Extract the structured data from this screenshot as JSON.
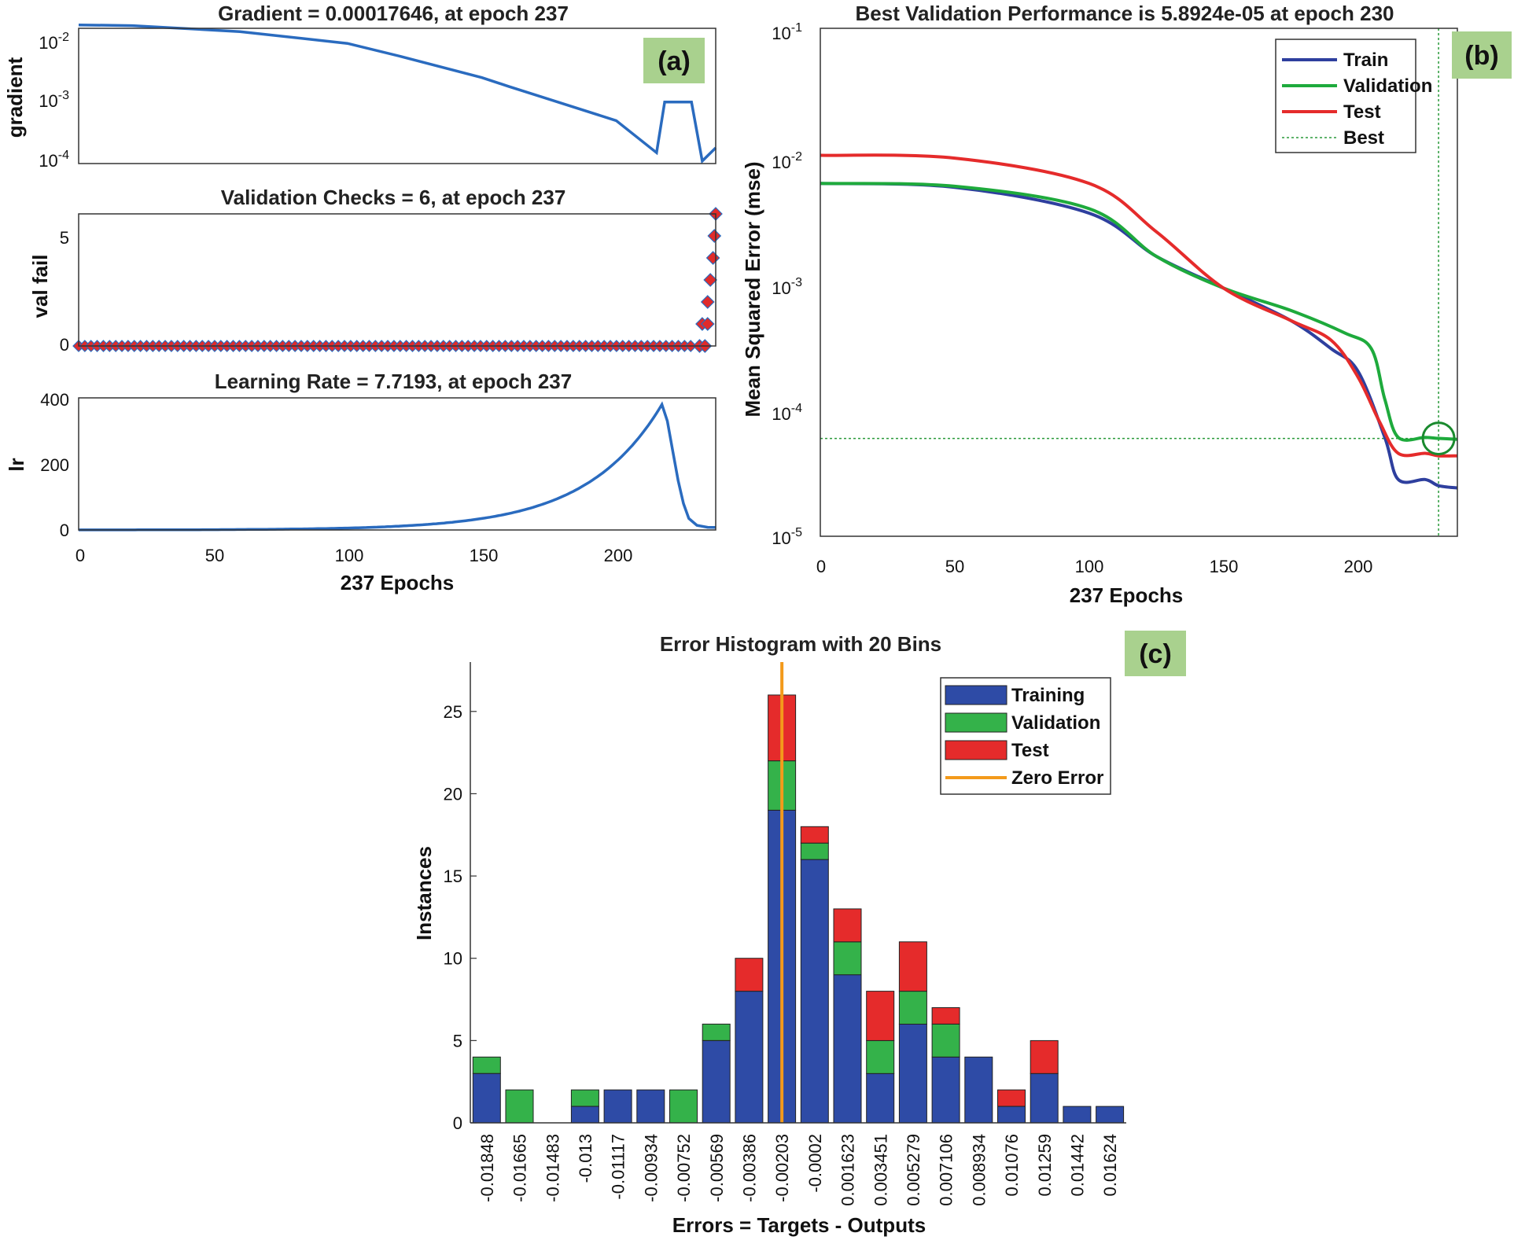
{
  "chart_data": [
    {
      "panel": "(a)",
      "type": "line",
      "title": "Gradient = 0.00017646, at epoch 237",
      "ylabel": "gradient",
      "xlim": [
        0,
        237
      ],
      "ylim_log10": [
        -4,
        -1.8
      ],
      "yticks": [
        "10-2",
        "10-3",
        "10-4"
      ],
      "color": "#2a6bbf",
      "x": [
        0,
        20,
        60,
        100,
        120,
        150,
        160,
        200,
        215,
        218,
        228,
        232,
        237
      ],
      "y": [
        0.018,
        0.0175,
        0.014,
        0.009,
        0.0055,
        0.0025,
        0.0018,
        0.0005,
        0.00015,
        0.001,
        0.001,
        0.00011,
        0.00018
      ]
    },
    {
      "panel": "(a)",
      "type": "scatter",
      "title": "Validation Checks = 6, at epoch 237",
      "ylabel": "val fail",
      "xlim": [
        0,
        237
      ],
      "ylim": [
        0,
        6
      ],
      "yticks": [
        "0",
        "5"
      ],
      "marker_color": "#e02b2b",
      "line_color": "#2a6bbf",
      "x": [
        0,
        231,
        232,
        233,
        234,
        235,
        236,
        237
      ],
      "y": [
        0,
        0,
        1,
        2,
        3,
        4,
        5,
        6
      ]
    },
    {
      "panel": "(a)",
      "type": "line",
      "title": "Learning Rate = 7.7193, at epoch 237",
      "ylabel": "lr",
      "xlabel": "237 Epochs",
      "xlim": [
        0,
        237
      ],
      "ylim": [
        0,
        400
      ],
      "yticks": [
        "0",
        "200",
        "400"
      ],
      "xticks": [
        "0",
        "50",
        "100",
        "150",
        "200"
      ],
      "color": "#2a6bbf",
      "x": [
        0,
        100,
        150,
        180,
        200,
        210,
        217,
        222,
        228,
        237
      ],
      "y": [
        0,
        5,
        25,
        80,
        170,
        270,
        380,
        200,
        30,
        7.7
      ]
    },
    {
      "panel": "(b)",
      "type": "line",
      "title": "Best Validation Performance is 5.8924e-05 at epoch 230",
      "ylabel": "Mean Squared Error  (mse)",
      "xlabel": "237 Epochs",
      "xlim": [
        0,
        237
      ],
      "ylim_log10": [
        -5,
        -1
      ],
      "yticks": [
        "10-1",
        "10-2",
        "10-3",
        "10-4",
        "10-5"
      ],
      "xticks": [
        "0",
        "50",
        "100",
        "150",
        "200"
      ],
      "best": {
        "epoch": 230,
        "value": 5.8924e-05
      },
      "legend": [
        "Train",
        "Validation",
        "Test",
        "Best"
      ],
      "series": [
        {
          "name": "Train",
          "color": "#2e3f9e",
          "x": [
            0,
            50,
            100,
            125,
            150,
            175,
            190,
            200,
            210,
            215,
            225,
            230,
            237
          ],
          "y": [
            0.006,
            0.0056,
            0.0035,
            0.0016,
            0.0009,
            0.0005,
            0.0003,
            0.0002,
            6e-05,
            2.8e-05,
            2.8e-05,
            2.5e-05,
            2.4e-05
          ]
        },
        {
          "name": "Validation",
          "color": "#1eaa3c",
          "x": [
            0,
            50,
            100,
            125,
            150,
            175,
            195,
            205,
            210,
            215,
            225,
            230,
            237
          ],
          "y": [
            0.006,
            0.0057,
            0.0038,
            0.0016,
            0.0009,
            0.0006,
            0.0004,
            0.0003,
            0.00012,
            6e-05,
            6e-05,
            5.9e-05,
            5.8e-05
          ]
        },
        {
          "name": "Test",
          "color": "#e52b2b",
          "x": [
            0,
            50,
            100,
            125,
            150,
            175,
            190,
            200,
            208,
            215,
            225,
            230,
            237
          ],
          "y": [
            0.01,
            0.0095,
            0.006,
            0.0025,
            0.0009,
            0.0005,
            0.00035,
            0.00018,
            8e-05,
            4.5e-05,
            4.5e-05,
            4.3e-05,
            4.3e-05
          ]
        }
      ]
    },
    {
      "panel": "(c)",
      "type": "bar",
      "title": "Error Histogram with 20 Bins",
      "ylabel": "Instances",
      "xlabel": "Errors = Targets - Outputs",
      "ylim": [
        0,
        28
      ],
      "yticks": [
        "0",
        "5",
        "10",
        "15",
        "20",
        "25"
      ],
      "zero_error_bin": 9.5,
      "legend": [
        "Training",
        "Validation",
        "Test",
        "Zero Error"
      ],
      "categories": [
        "-0.01848",
        "-0.01665",
        "-0.01483",
        "-0.013",
        "-0.01117",
        "-0.00934",
        "-0.00752",
        "-0.00569",
        "-0.00386",
        "-0.00203",
        "-0.0002",
        "0.001623",
        "0.003451",
        "0.005279",
        "0.007106",
        "0.008934",
        "0.01076",
        "0.01259",
        "0.01442",
        "0.01624"
      ],
      "series": [
        {
          "name": "Training",
          "color": "#2e4ba6",
          "values": [
            3,
            0,
            0,
            1,
            2,
            2,
            0,
            5,
            8,
            19,
            16,
            9,
            3,
            6,
            4,
            4,
            1,
            3,
            1,
            1
          ]
        },
        {
          "name": "Validation",
          "color": "#34b24a",
          "values": [
            1,
            2,
            0,
            1,
            0,
            0,
            2,
            1,
            0,
            3,
            1,
            2,
            2,
            2,
            2,
            0,
            0,
            0,
            0,
            0
          ]
        },
        {
          "name": "Test",
          "color": "#e52b2b",
          "values": [
            0,
            0,
            0,
            0,
            0,
            0,
            0,
            0,
            2,
            4,
            1,
            2,
            3,
            3,
            1,
            0,
            1,
            2,
            0,
            0
          ]
        }
      ],
      "zero_error_color": "#f39a1b"
    }
  ],
  "panel_tags": {
    "a": "(a)",
    "b": "(b)",
    "c": "(c)"
  },
  "colors": {
    "tag_bg": "#a9d18e"
  }
}
